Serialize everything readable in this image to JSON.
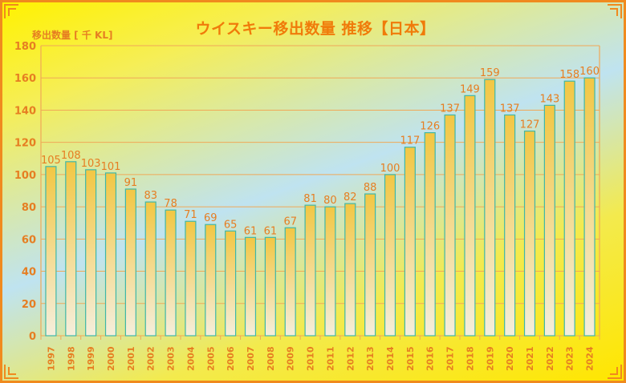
{
  "chart_data": {
    "type": "bar",
    "title": "ウイスキー移出数量 推移【日本】",
    "ylabel": "移出数量 [ 千 KL]",
    "xlabel": "",
    "ylim": [
      0,
      180
    ],
    "yticks": [
      0,
      20,
      40,
      60,
      80,
      100,
      120,
      140,
      160,
      180
    ],
    "categories": [
      "1997",
      "1998",
      "1999",
      "2000",
      "2001",
      "2002",
      "2003",
      "2004",
      "2005",
      "2006",
      "2007",
      "2008",
      "2009",
      "2010",
      "2011",
      "2012",
      "2013",
      "2014",
      "2015",
      "2016",
      "2017",
      "2018",
      "2019",
      "2020",
      "2021",
      "2022",
      "2023",
      "2024"
    ],
    "values": [
      105,
      108,
      103,
      101,
      91,
      83,
      78,
      71,
      69,
      65,
      61,
      61,
      67,
      81,
      80,
      82,
      88,
      100,
      117,
      126,
      137,
      149,
      159,
      137,
      127,
      143,
      158,
      160
    ],
    "grid": true,
    "legend": "none"
  },
  "colors": {
    "accent": "#F08A1E",
    "label": "#E67E22",
    "bar_top": "#F2C744",
    "bar_bottom": "#F5EEDC",
    "bar_border": "#3FB7A8",
    "grid": "#F0A858"
  }
}
